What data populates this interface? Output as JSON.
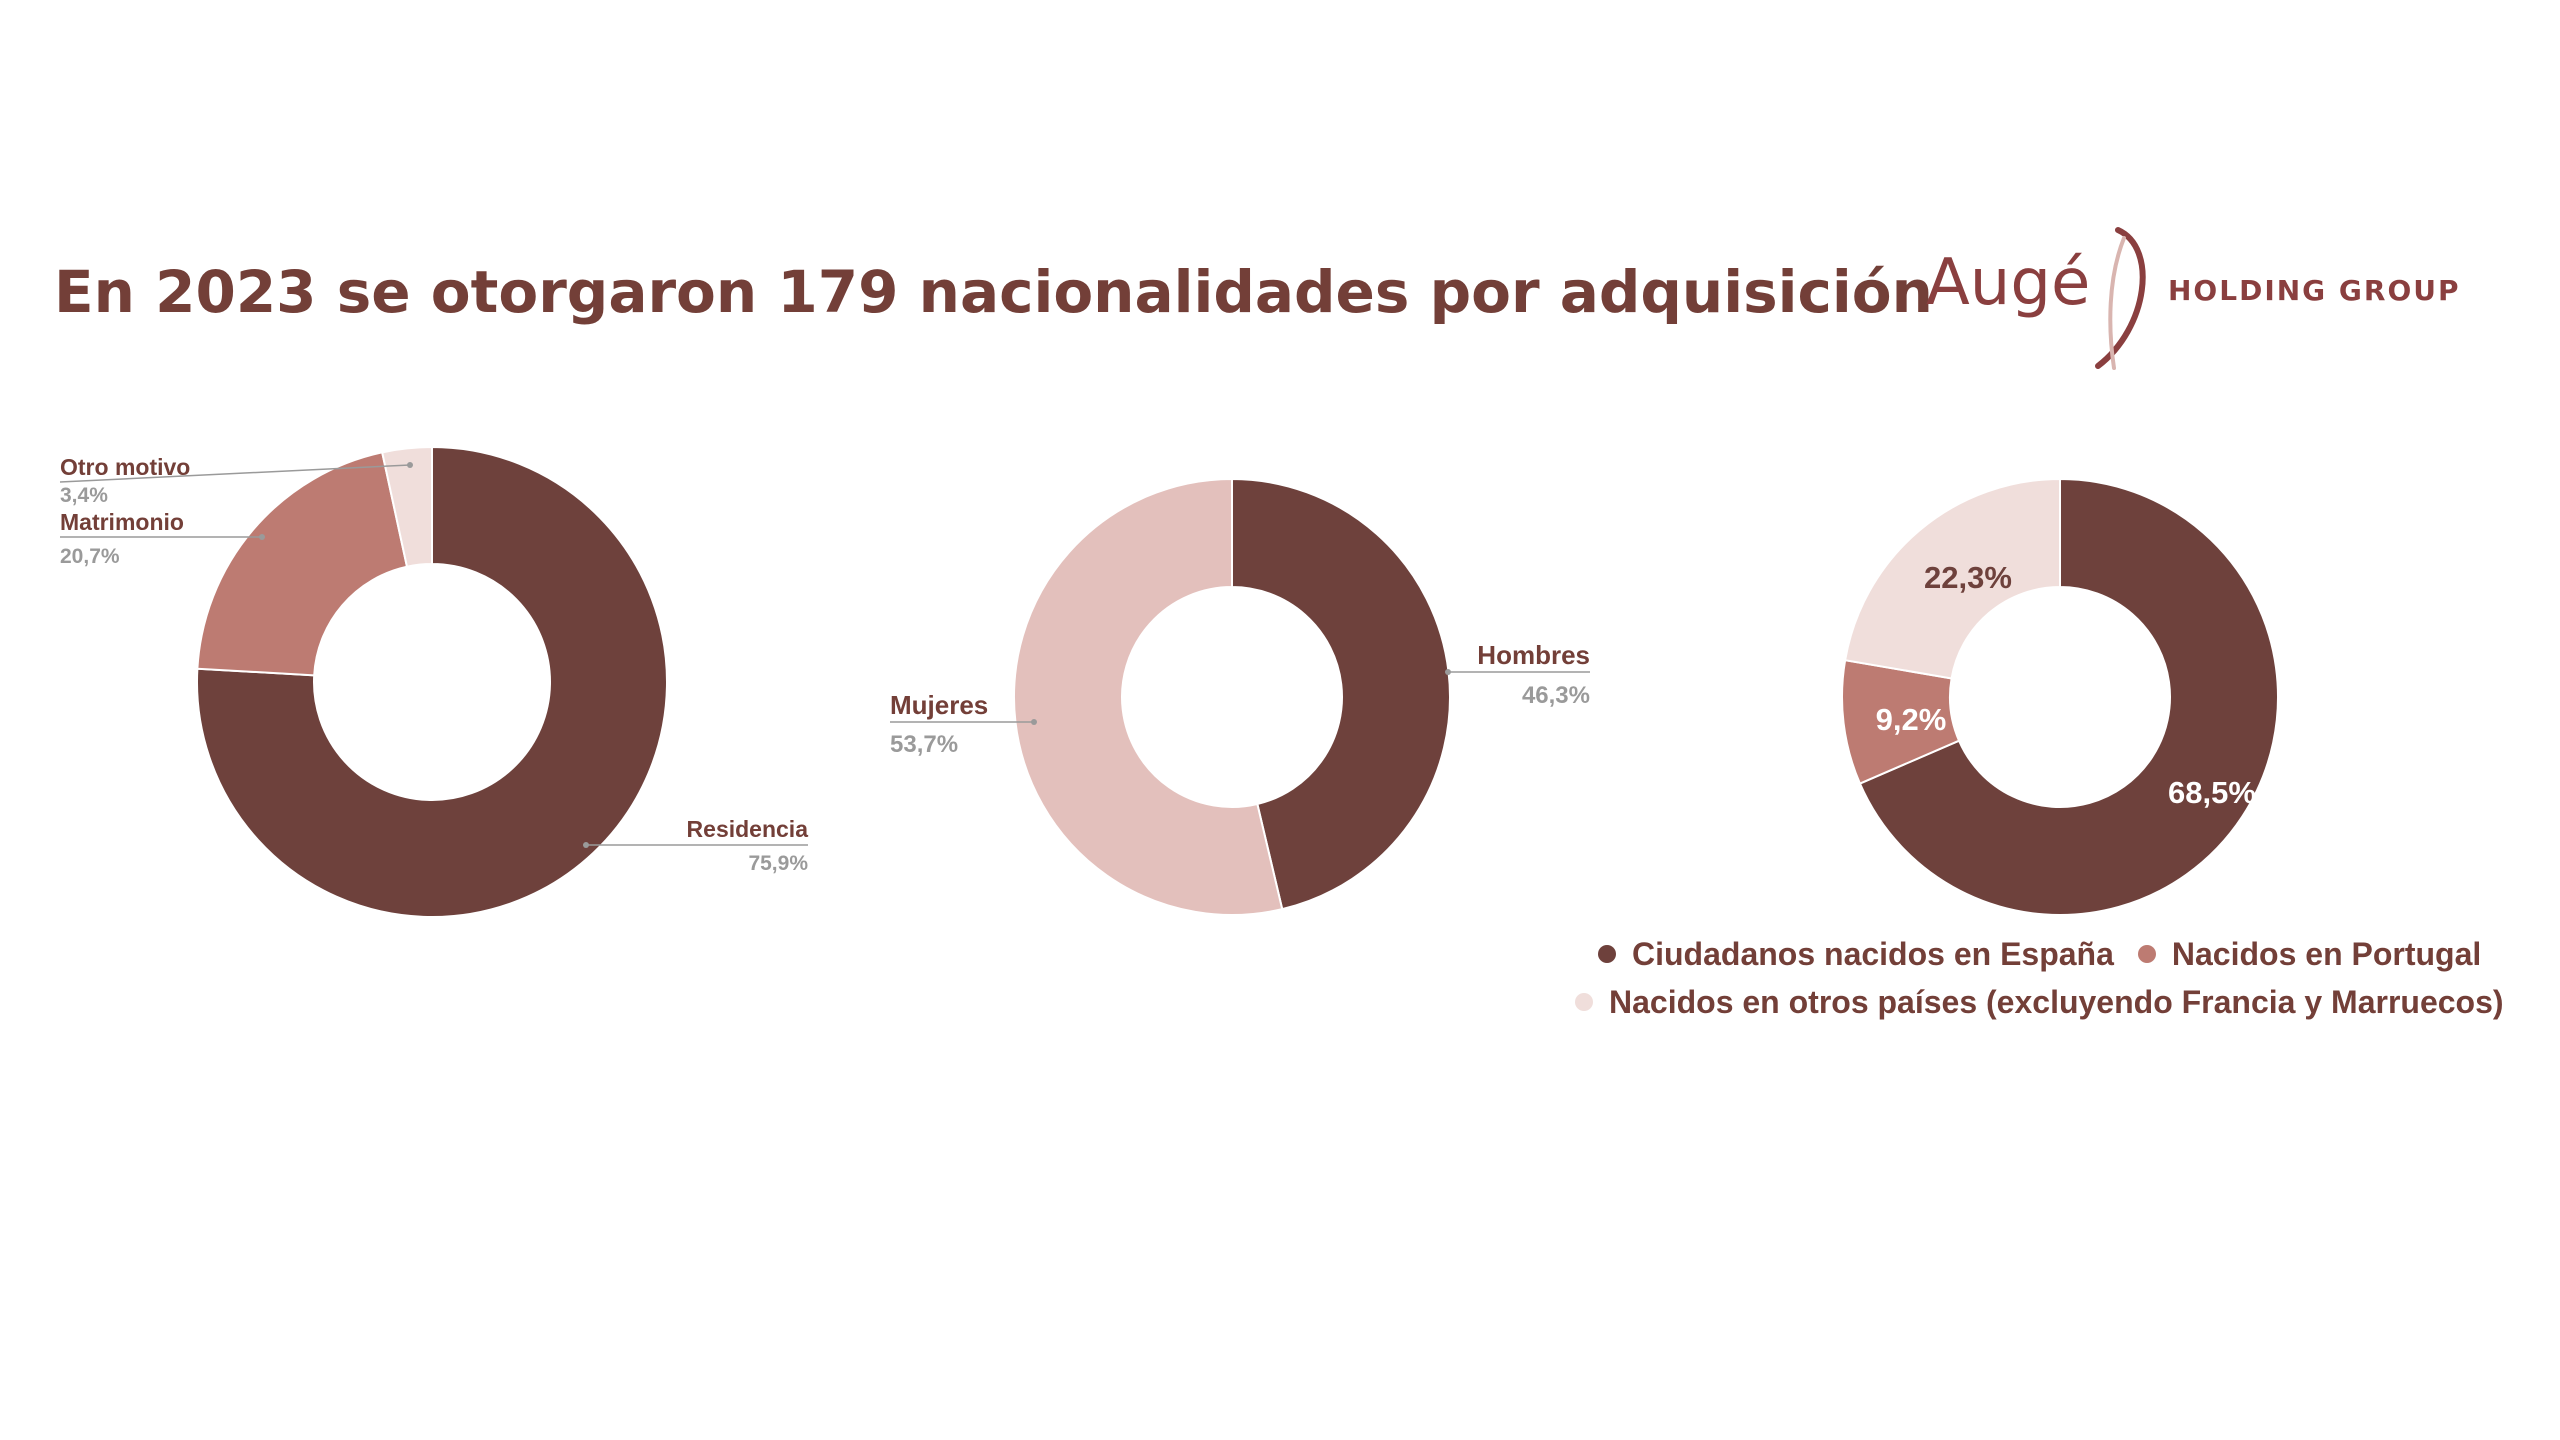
{
  "title": "En 2023 se otorgaron 179 nacionalidades por adquisición",
  "logo": {
    "word": "Augé",
    "sub": "HOLDING GROUP"
  },
  "colors": {
    "dark": "#6e413c",
    "mid": "#bd7b72",
    "light": "#e3c0bc",
    "pale": "#f0dedb",
    "title": "#733f38"
  },
  "chart_data": [
    {
      "type": "pie",
      "donut": true,
      "slices": [
        {
          "label": "Residencia",
          "value": 75.9,
          "value_label": "75,9%",
          "color": "#6e413c"
        },
        {
          "label": "Matrimonio",
          "value": 20.7,
          "value_label": "20,7%",
          "color": "#bd7b72"
        },
        {
          "label": "Otro motivo",
          "value": 3.4,
          "value_label": "3,4%",
          "color": "#f0dedb"
        }
      ]
    },
    {
      "type": "pie",
      "donut": true,
      "slices": [
        {
          "label": "Hombres",
          "value": 46.3,
          "value_label": "46,3%",
          "color": "#6e413c"
        },
        {
          "label": "Mujeres",
          "value": 53.7,
          "value_label": "53,7%",
          "color": "#e3c0bc"
        }
      ]
    },
    {
      "type": "pie",
      "donut": true,
      "legend_position": "bottom",
      "slices": [
        {
          "label": "Ciudadanos nacidos en España",
          "value": 68.5,
          "value_label": "68,5%",
          "color": "#6e413c"
        },
        {
          "label": "Nacidos en Portugal",
          "value": 9.2,
          "value_label": "9,2%",
          "color": "#bd7b72"
        },
        {
          "label": "Nacidos en otros países (excluyendo Francia y Marruecos)",
          "value": 22.3,
          "value_label": "22,3%",
          "color": "#f0dedb"
        }
      ]
    }
  ]
}
